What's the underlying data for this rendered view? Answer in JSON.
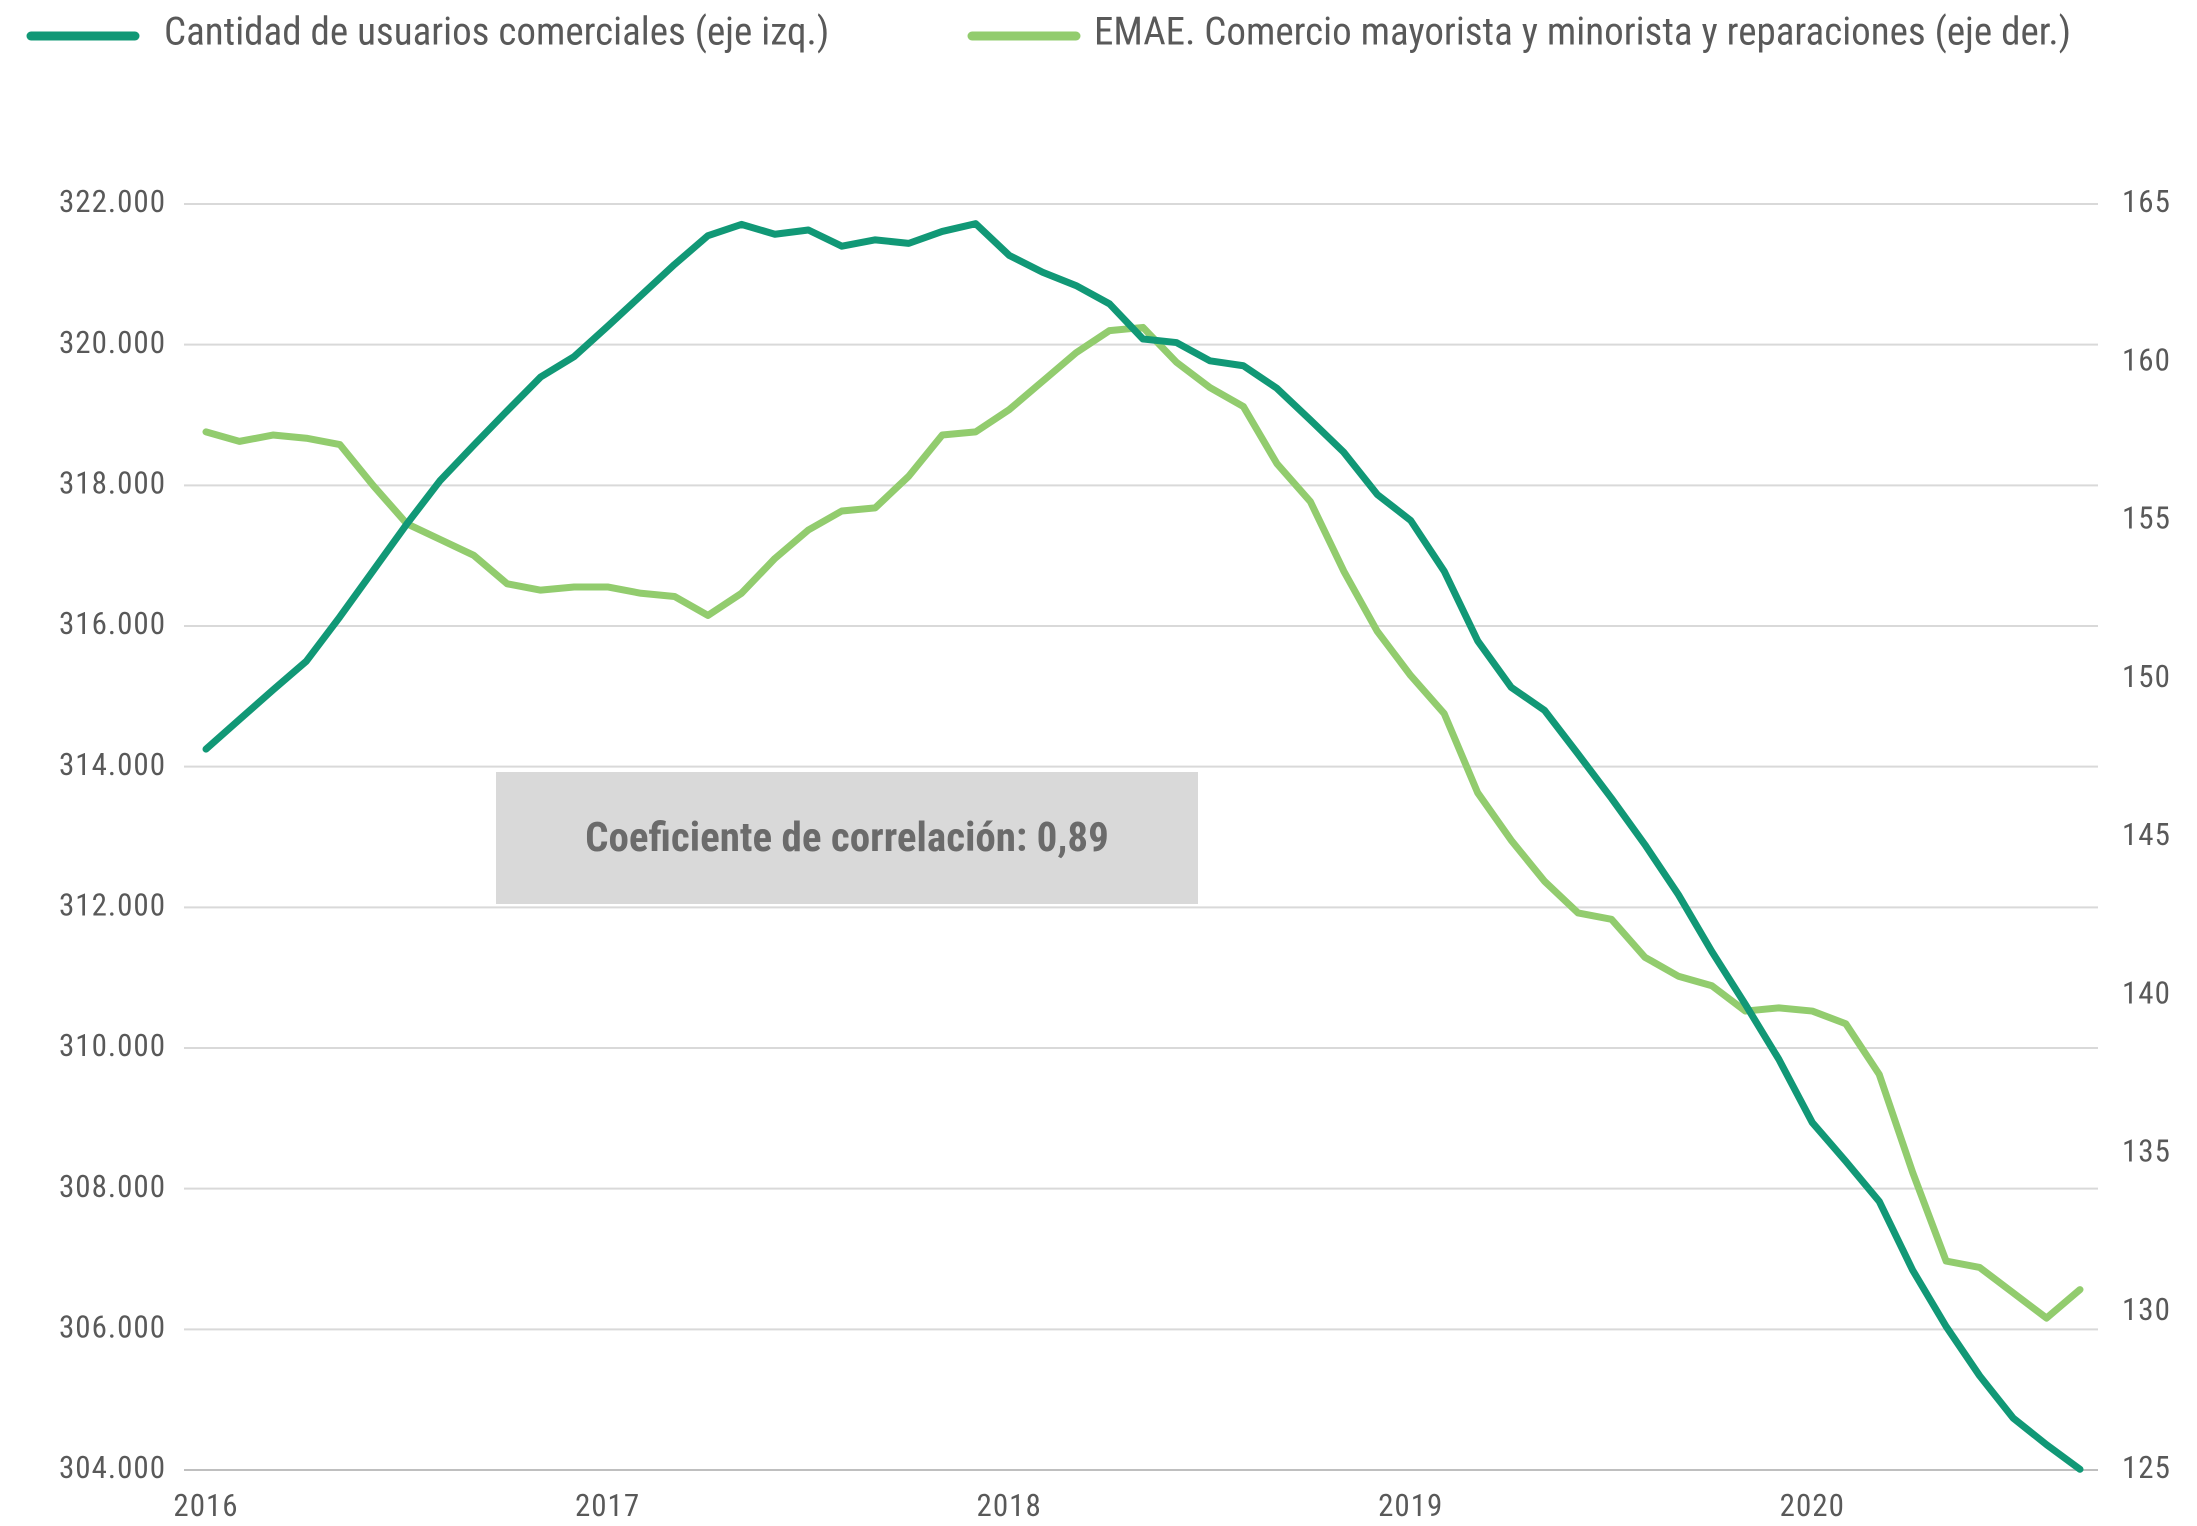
{
  "chart_data": {
    "type": "line",
    "annotation": "Coeficiente de correlación: 0,89",
    "categories": [
      "2016",
      null,
      null,
      null,
      null,
      null,
      null,
      null,
      null,
      null,
      null,
      null,
      "2017",
      null,
      null,
      null,
      null,
      null,
      null,
      null,
      null,
      null,
      null,
      null,
      "2018",
      null,
      null,
      null,
      null,
      null,
      null,
      null,
      null,
      null,
      null,
      null,
      "2019",
      null,
      null,
      null,
      null,
      null,
      null,
      null,
      null,
      null,
      null,
      null,
      "2020",
      null,
      null,
      null,
      null,
      null,
      null,
      null,
      null
    ],
    "series": [
      {
        "name": "Cantidad de usuarios comerciales (eje izq.)",
        "color": "#119876",
        "axis": "y",
        "values": [
          314250,
          314670,
          315090,
          315500,
          316130,
          316790,
          317450,
          318070,
          318570,
          319060,
          319540,
          319830,
          320260,
          320700,
          321140,
          321550,
          321710,
          321570,
          321630,
          321400,
          321490,
          321440,
          321610,
          321720,
          321270,
          321030,
          320840,
          320580,
          320080,
          320030,
          319770,
          319700,
          319380,
          318930,
          318470,
          317870,
          317500,
          316780,
          315790,
          315130,
          314800,
          314180,
          313550,
          312890,
          312180,
          311370,
          310620,
          309840,
          308940,
          308390,
          307820,
          306840,
          306040,
          305340,
          304740,
          304360,
          304010
        ]
      },
      {
        "name": "EMAE. Comercio mayorista y minorista y reparaciones (eje der.)",
        "color": "#92cc6e",
        "axis": "y2",
        "values": [
          157.8,
          157.5,
          157.7,
          157.6,
          157.4,
          156.1,
          154.9,
          154.4,
          153.9,
          153.0,
          152.8,
          152.9,
          152.9,
          152.7,
          152.6,
          152.0,
          152.7,
          153.8,
          154.7,
          155.3,
          155.4,
          156.4,
          157.7,
          157.8,
          158.5,
          159.4,
          160.3,
          161.0,
          161.1,
          160.0,
          159.2,
          158.6,
          156.8,
          155.6,
          153.4,
          151.5,
          150.1,
          148.9,
          146.4,
          144.9,
          143.6,
          142.6,
          142.4,
          141.2,
          140.6,
          140.3,
          139.5,
          139.6,
          139.5,
          139.1,
          137.5,
          134.4,
          131.6,
          131.4,
          130.6,
          129.8,
          130.7
        ]
      }
    ],
    "ylim": [
      304000,
      322000
    ],
    "yticks": [
      {
        "value": 304000,
        "label": "304.000"
      },
      {
        "value": 306000,
        "label": "306.000"
      },
      {
        "value": 308000,
        "label": "308.000"
      },
      {
        "value": 310000,
        "label": "310.000"
      },
      {
        "value": 312000,
        "label": "312.000"
      },
      {
        "value": 314000,
        "label": "314.000"
      },
      {
        "value": 316000,
        "label": "316.000"
      },
      {
        "value": 318000,
        "label": "318.000"
      },
      {
        "value": 320000,
        "label": "320.000"
      },
      {
        "value": 322000,
        "label": "322.000"
      }
    ],
    "y2lim": [
      125,
      165
    ],
    "y2ticks": [
      125,
      130,
      135,
      140,
      145,
      150,
      155,
      160,
      165
    ],
    "grid": true,
    "legend": "top"
  }
}
